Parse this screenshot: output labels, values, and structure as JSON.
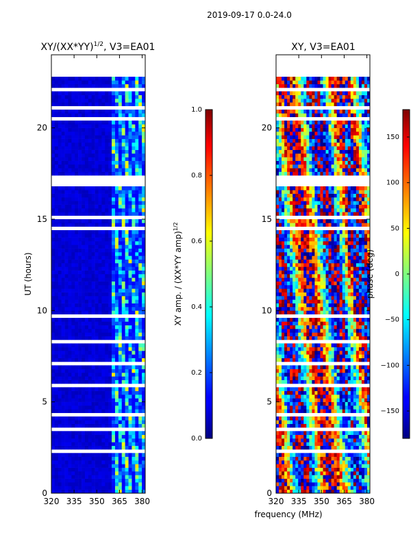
{
  "header": {
    "title": "2019-09-17 0.0-24.0"
  },
  "chart_data": [
    {
      "type": "heatmap",
      "title": "XY/(XX*YY)^{1/2}, V3=EA01",
      "title_base": "XY/(XX*YY)",
      "title_exp": "1/2",
      "title_suffix": ", V3=EA01",
      "xlabel": "",
      "ylabel": "UT (hours)",
      "xlim": [
        320,
        382
      ],
      "ylim": [
        0,
        24
      ],
      "xticks": [
        320,
        335,
        350,
        365,
        380
      ],
      "yticks": [
        0,
        5,
        10,
        15,
        20
      ],
      "colorbar": {
        "label_base": "XY amp. / (XX*YY amp)",
        "label_exp": "1/2",
        "range": [
          0.0,
          1.0
        ],
        "ticks": [
          "0.0",
          "0.2",
          "0.4",
          "0.6",
          "0.8",
          "1.0"
        ],
        "colormap": "jet"
      },
      "data_end_hours": 22.8
    },
    {
      "type": "heatmap",
      "title": "XY, V3=EA01",
      "xlabel": "frequency (MHz)",
      "ylabel": "",
      "xlim": [
        320,
        382
      ],
      "ylim": [
        0,
        24
      ],
      "xticks": [
        320,
        335,
        350,
        365,
        380
      ],
      "yticks": [
        0,
        5,
        10,
        15,
        20
      ],
      "colorbar": {
        "label": "phase (deg)",
        "range": [
          -180,
          180
        ],
        "ticks": [
          "150",
          "100",
          "50",
          "0",
          "−50",
          "−100",
          "−150"
        ],
        "colormap": "jet"
      },
      "data_end_hours": 22.8
    }
  ]
}
